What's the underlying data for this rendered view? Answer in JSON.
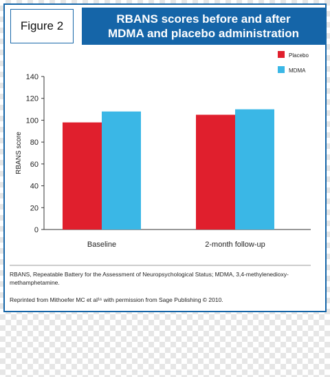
{
  "figure_label": "Figure 2",
  "title_line1": "RBANS scores before and after",
  "title_line2": "MDMA and placebo administration",
  "footnote_abbrev": "RBANS, Repeatable Battery for the Assessment of Neuropsychological Status; MDMA, 3,4-methylenedioxy-methamphetamine.",
  "footnote_reprint": "Reprinted from Mithoefer MC et al¹⁶ with permission from Sage Publishing © 2010.",
  "colors": {
    "accent": "#1565a8",
    "placebo": "#e01f2d",
    "mdma": "#3ab7e6"
  },
  "chart_data": {
    "type": "bar",
    "categories": [
      "Baseline",
      "2-month follow-up"
    ],
    "series": [
      {
        "name": "Placebo",
        "values": [
          98,
          105
        ]
      },
      {
        "name": "MDMA",
        "values": [
          108,
          110
        ]
      }
    ],
    "ylabel": "RBANS score",
    "xlabel": "",
    "ylim": [
      0,
      140
    ],
    "yticks": [
      0,
      20,
      40,
      60,
      80,
      100,
      120,
      140
    ],
    "legend": "top-right",
    "grid": false
  }
}
